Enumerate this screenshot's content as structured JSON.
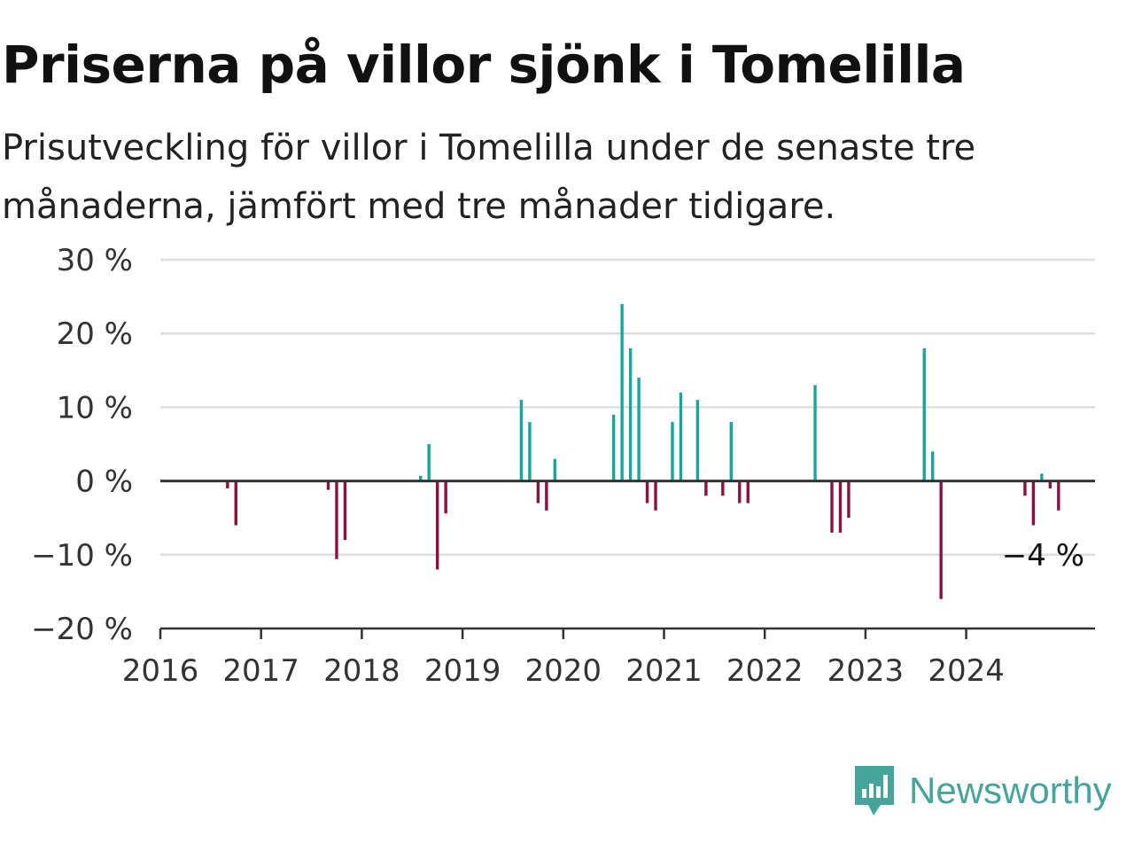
{
  "title": "Priserna på villor sjönk i Tomelilla",
  "subtitle": "Prisutveckling för villor i Tomelilla under de senaste tre månaderna, jämfört med tre månader tidigare.",
  "brand": {
    "name": "Newsworthy",
    "icon": "bar-chart-speech-bubble-icon",
    "color": "#46a49b"
  },
  "colors": {
    "positive": "#1aa59a",
    "negative": "#8c1140",
    "grid": "#dddddd",
    "axis": "#333333",
    "text": "#333333"
  },
  "chart_data": {
    "type": "bar",
    "ylim": [
      -20,
      30
    ],
    "y_ticks": [
      30,
      20,
      10,
      0,
      -10,
      -20
    ],
    "y_tick_labels": [
      "30 %",
      "20 %",
      "10 %",
      "0 %",
      "−10 %",
      "−20 %"
    ],
    "x_ticks": [
      "2016",
      "2017",
      "2018",
      "2019",
      "2020",
      "2021",
      "2022",
      "2023",
      "2024"
    ],
    "x_range": [
      "2016-01",
      "2025-04"
    ],
    "grid": true,
    "legend": "none",
    "dates": [
      "2016-09",
      "2016-10",
      "2017-09",
      "2017-10",
      "2017-11",
      "2018-08",
      "2018-09",
      "2018-10",
      "2018-11",
      "2019-08",
      "2019-09",
      "2019-10",
      "2019-11",
      "2019-12",
      "2020-07",
      "2020-08",
      "2020-09",
      "2020-10",
      "2020-11",
      "2020-12",
      "2021-02",
      "2021-03",
      "2021-05",
      "2021-06",
      "2021-08",
      "2021-09",
      "2021-10",
      "2021-11",
      "2022-07",
      "2022-09",
      "2022-10",
      "2022-11",
      "2023-08",
      "2023-09",
      "2023-10",
      "2024-08",
      "2024-09",
      "2024-10",
      "2024-11",
      "2024-12"
    ],
    "values": [
      -1,
      -6,
      -1.2,
      -10.6,
      -8,
      0.7,
      5,
      -12,
      -4.4,
      11,
      8,
      -3,
      -4,
      3,
      9,
      24,
      18,
      14,
      -3,
      -4,
      8,
      12,
      11,
      -2,
      -2,
      8,
      -3,
      -3,
      13,
      -7,
      -7,
      -5,
      18,
      4,
      -16,
      -2,
      -6,
      1,
      -1,
      -4
    ],
    "annotation": {
      "text": "−4 %",
      "date": "2024-12",
      "value": -4
    }
  }
}
